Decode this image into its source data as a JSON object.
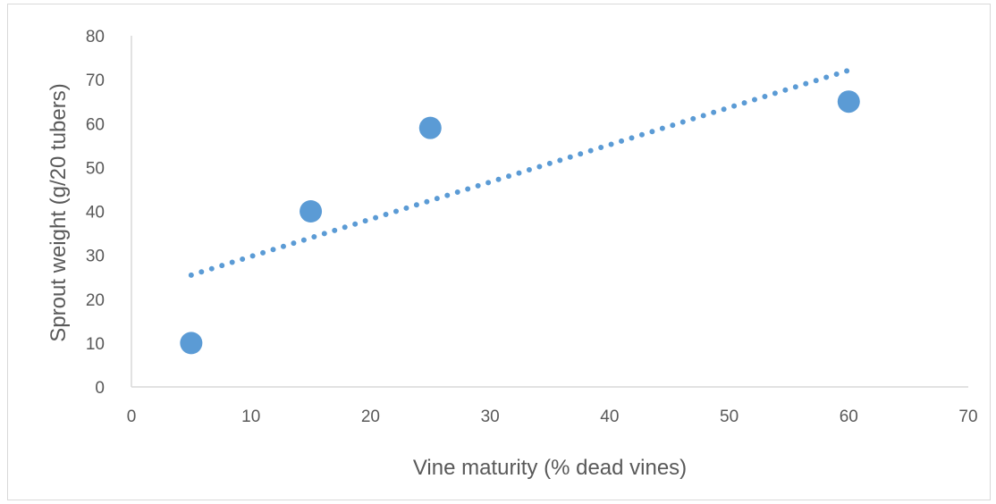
{
  "chart_data": {
    "type": "scatter",
    "title": "",
    "xlabel": "Vine maturity (% dead vines)",
    "ylabel": "Sprout weight (g/20 tubers)",
    "xlim": [
      0,
      70
    ],
    "ylim": [
      0,
      80
    ],
    "x_ticks": [
      0,
      10,
      20,
      30,
      40,
      50,
      60,
      70
    ],
    "y_ticks": [
      0,
      10,
      20,
      30,
      40,
      50,
      60,
      70,
      80
    ],
    "grid": false,
    "legend": "none",
    "series": [
      {
        "x": [
          5,
          15,
          25,
          60
        ],
        "y": [
          10,
          40,
          59,
          65
        ],
        "color": "#5b9bd5",
        "marker": "circle"
      }
    ],
    "trendline": {
      "type": "linear",
      "style": "dotted",
      "color": "#5b9bd5",
      "x_range": [
        5,
        60
      ]
    }
  }
}
